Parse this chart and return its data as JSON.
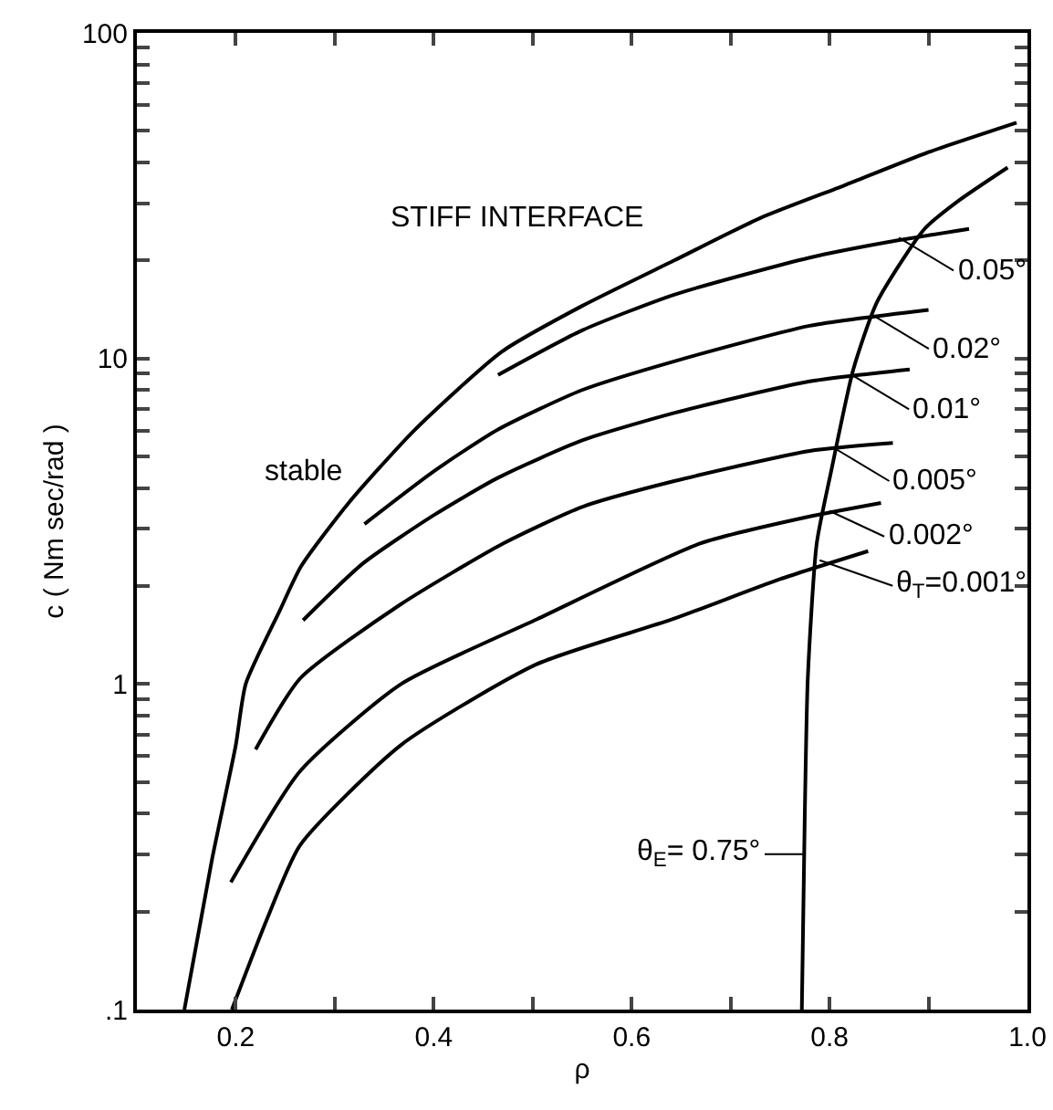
{
  "chart_data": {
    "type": "line",
    "xlabel": "ρ",
    "ylabel": "c ( Nm sec/rad )",
    "log": "y",
    "grid": false,
    "marker": "none",
    "line_style": "solid",
    "xlim": [
      0.1,
      1.0
    ],
    "ylim": [
      0.1,
      100
    ],
    "xticks": [
      0.2,
      {
        "value": 0.3,
        "label": null
      },
      0.4,
      {
        "value": 0.5,
        "label": null
      },
      0.6,
      {
        "value": 0.7,
        "label": null
      },
      0.8,
      {
        "value": 0.9,
        "label": null
      },
      {
        "value": 1.0,
        "label": "1.0"
      }
    ],
    "yticks": [
      {
        "value": 0.1,
        "label": ".1"
      },
      {
        "value": 0.2,
        "label": null
      },
      {
        "value": 0.3,
        "label": null
      },
      {
        "value": 0.4,
        "label": null
      },
      {
        "value": 0.5,
        "label": null
      },
      {
        "value": 0.6,
        "label": null
      },
      {
        "value": 0.7,
        "label": null
      },
      {
        "value": 0.8,
        "label": null
      },
      {
        "value": 0.9,
        "label": null
      },
      1,
      {
        "value": 2,
        "label": null
      },
      {
        "value": 3,
        "label": null
      },
      {
        "value": 4,
        "label": null
      },
      {
        "value": 5,
        "label": null
      },
      {
        "value": 6,
        "label": null
      },
      {
        "value": 7,
        "label": null
      },
      {
        "value": 8,
        "label": null
      },
      {
        "value": 9,
        "label": null
      },
      10,
      {
        "value": 20,
        "label": null
      },
      {
        "value": 30,
        "label": null
      },
      {
        "value": 40,
        "label": null
      },
      {
        "value": 50,
        "label": null
      },
      {
        "value": 60,
        "label": null
      },
      {
        "value": 70,
        "label": null
      },
      {
        "value": 80,
        "label": null
      },
      {
        "value": 90,
        "label": null
      },
      100
    ],
    "series": [
      {
        "color": "#000000",
        "x": [
          0.148,
          0.176,
          0.2,
          0.21,
          0.244,
          0.266,
          0.314,
          0.38,
          0.469,
          0.55,
          0.643,
          0.73,
          0.815,
          0.9,
          0.989
        ],
        "values": [
          0.1,
          0.29,
          0.65,
          1.0,
          1.67,
          2.3,
          3.6,
          6.0,
          10.5,
          14.5,
          20,
          27,
          34,
          43,
          53
        ]
      },
      {
        "color": "#000000",
        "x": [
          0.465,
          0.55,
          0.643,
          0.78,
          0.86,
          0.941
        ],
        "values": [
          8.9,
          12.2,
          15.7,
          20.4,
          22.8,
          25
        ]
      },
      {
        "color": "#000000",
        "x": [
          0.33,
          0.4,
          0.465,
          0.55,
          0.643,
          0.78,
          0.9
        ],
        "values": [
          3.1,
          4.5,
          6.05,
          8.0,
          9.8,
          12.6,
          14.1
        ]
      },
      {
        "color": "#000000",
        "x": [
          0.268,
          0.328,
          0.4,
          0.465,
          0.55,
          0.643,
          0.78,
          0.881
        ],
        "values": [
          1.57,
          2.34,
          3.3,
          4.3,
          5.6,
          6.8,
          8.5,
          9.25
        ]
      },
      {
        "color": "#000000",
        "x": [
          0.22,
          0.265,
          0.367,
          0.47,
          0.55,
          0.643,
          0.78,
          0.864
        ],
        "values": [
          0.63,
          1.04,
          1.76,
          2.7,
          3.5,
          4.2,
          5.2,
          5.5
        ]
      },
      {
        "color": "#000000",
        "x": [
          0.195,
          0.265,
          0.367,
          0.504,
          0.669,
          0.78,
          0.852
        ],
        "values": [
          0.246,
          0.54,
          1.0,
          1.58,
          2.7,
          3.27,
          3.6
        ]
      },
      {
        "color": "#000000",
        "x": [
          0.196,
          0.231,
          0.265,
          0.367,
          0.504,
          0.641,
          0.75,
          0.839
        ],
        "values": [
          0.1,
          0.188,
          0.32,
          0.65,
          1.15,
          1.58,
          2.1,
          2.56
        ]
      },
      {
        "color": "#000000",
        "x": [
          0.772,
          0.775,
          0.778,
          0.787,
          0.802,
          0.824,
          0.848,
          0.896,
          0.931,
          0.98
        ],
        "values": [
          0.1,
          0.4,
          1.04,
          2.7,
          4.56,
          9.25,
          14.9,
          25,
          30.6,
          38.6
        ]
      }
    ],
    "annotations": [
      {
        "text": "STIFF INTERFACE"
      },
      {
        "text": "stable"
      },
      {
        "text": "0.05°",
        "x": 0.87,
        "y": 23.5
      },
      {
        "text": "0.02°",
        "x": 0.845,
        "y": 13.5
      },
      {
        "text": "0.01°",
        "x": 0.825,
        "y": 8.8
      },
      {
        "text": "0.005°",
        "x": 0.805,
        "y": 5.3
      },
      {
        "text": "0.002°",
        "x": 0.8,
        "y": 3.4
      },
      {
        "text": "θ$_{T}$=0.001°",
        "x": 0.79,
        "y": 2.4
      },
      {
        "text": "θ$_{E}$= 0.75°",
        "x": 0.775,
        "y": 0.3
      }
    ]
  }
}
